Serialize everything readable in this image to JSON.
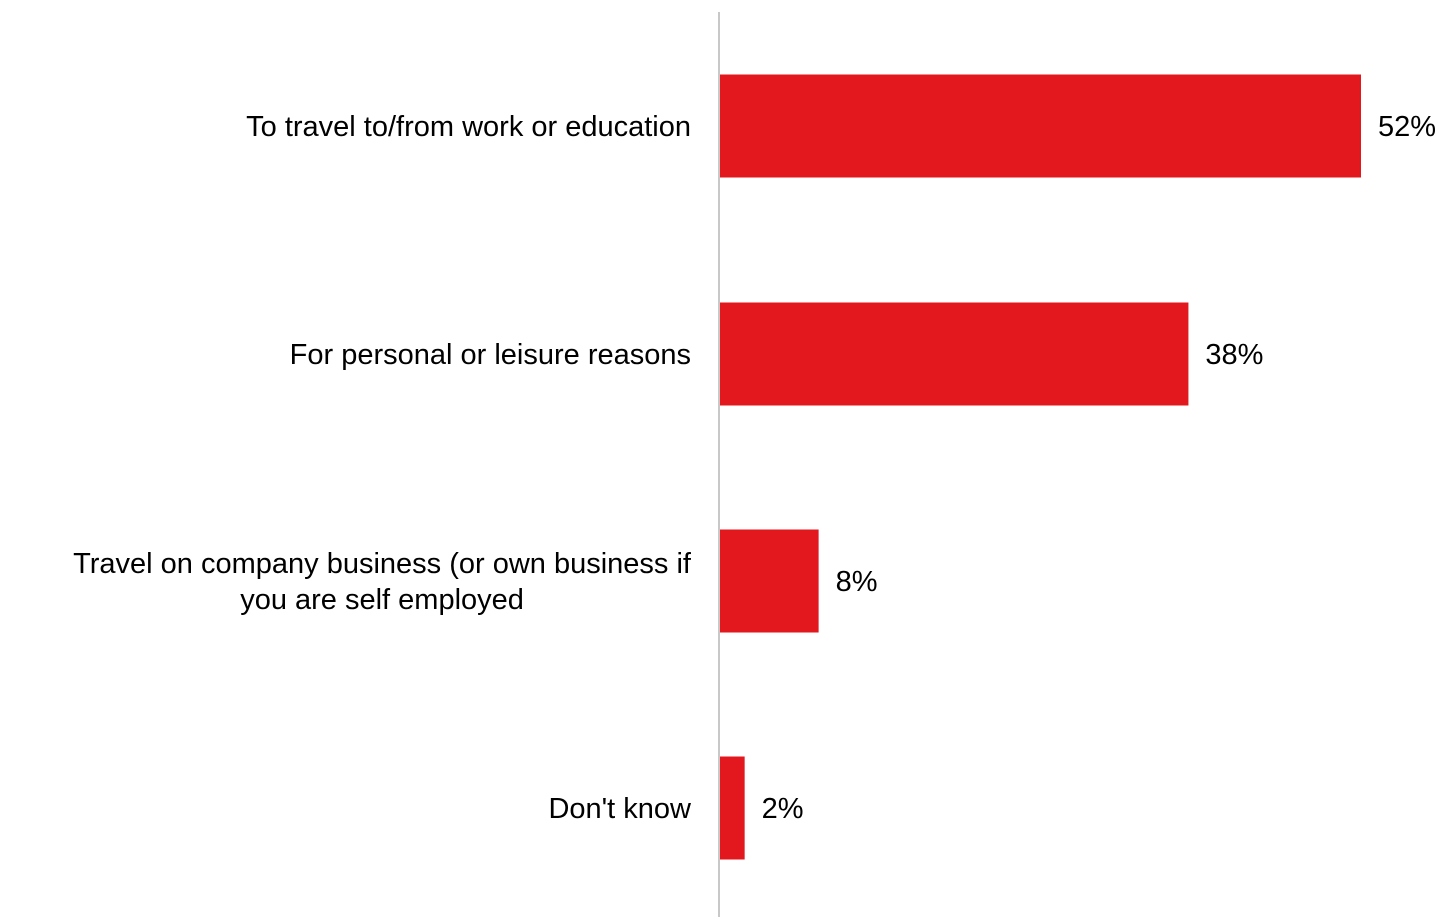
{
  "chart_data": {
    "type": "bar",
    "orientation": "horizontal",
    "categories": [
      [
        "To travel to/from work or education"
      ],
      [
        "For personal or leisure reasons"
      ],
      [
        "Travel on company business (or own business if",
        "you are self employed"
      ],
      [
        "Don't know"
      ]
    ],
    "values": [
      52,
      38,
      8,
      2
    ],
    "value_labels": [
      "52%",
      "38%",
      "8%",
      "2%"
    ],
    "title": "",
    "xlabel": "",
    "ylabel": "",
    "xlim": [
      0,
      60
    ],
    "grid": false,
    "legend": "none",
    "colors": {
      "bar": "#e3181e",
      "axis": "#c8c8c8",
      "text": "#000000"
    }
  }
}
